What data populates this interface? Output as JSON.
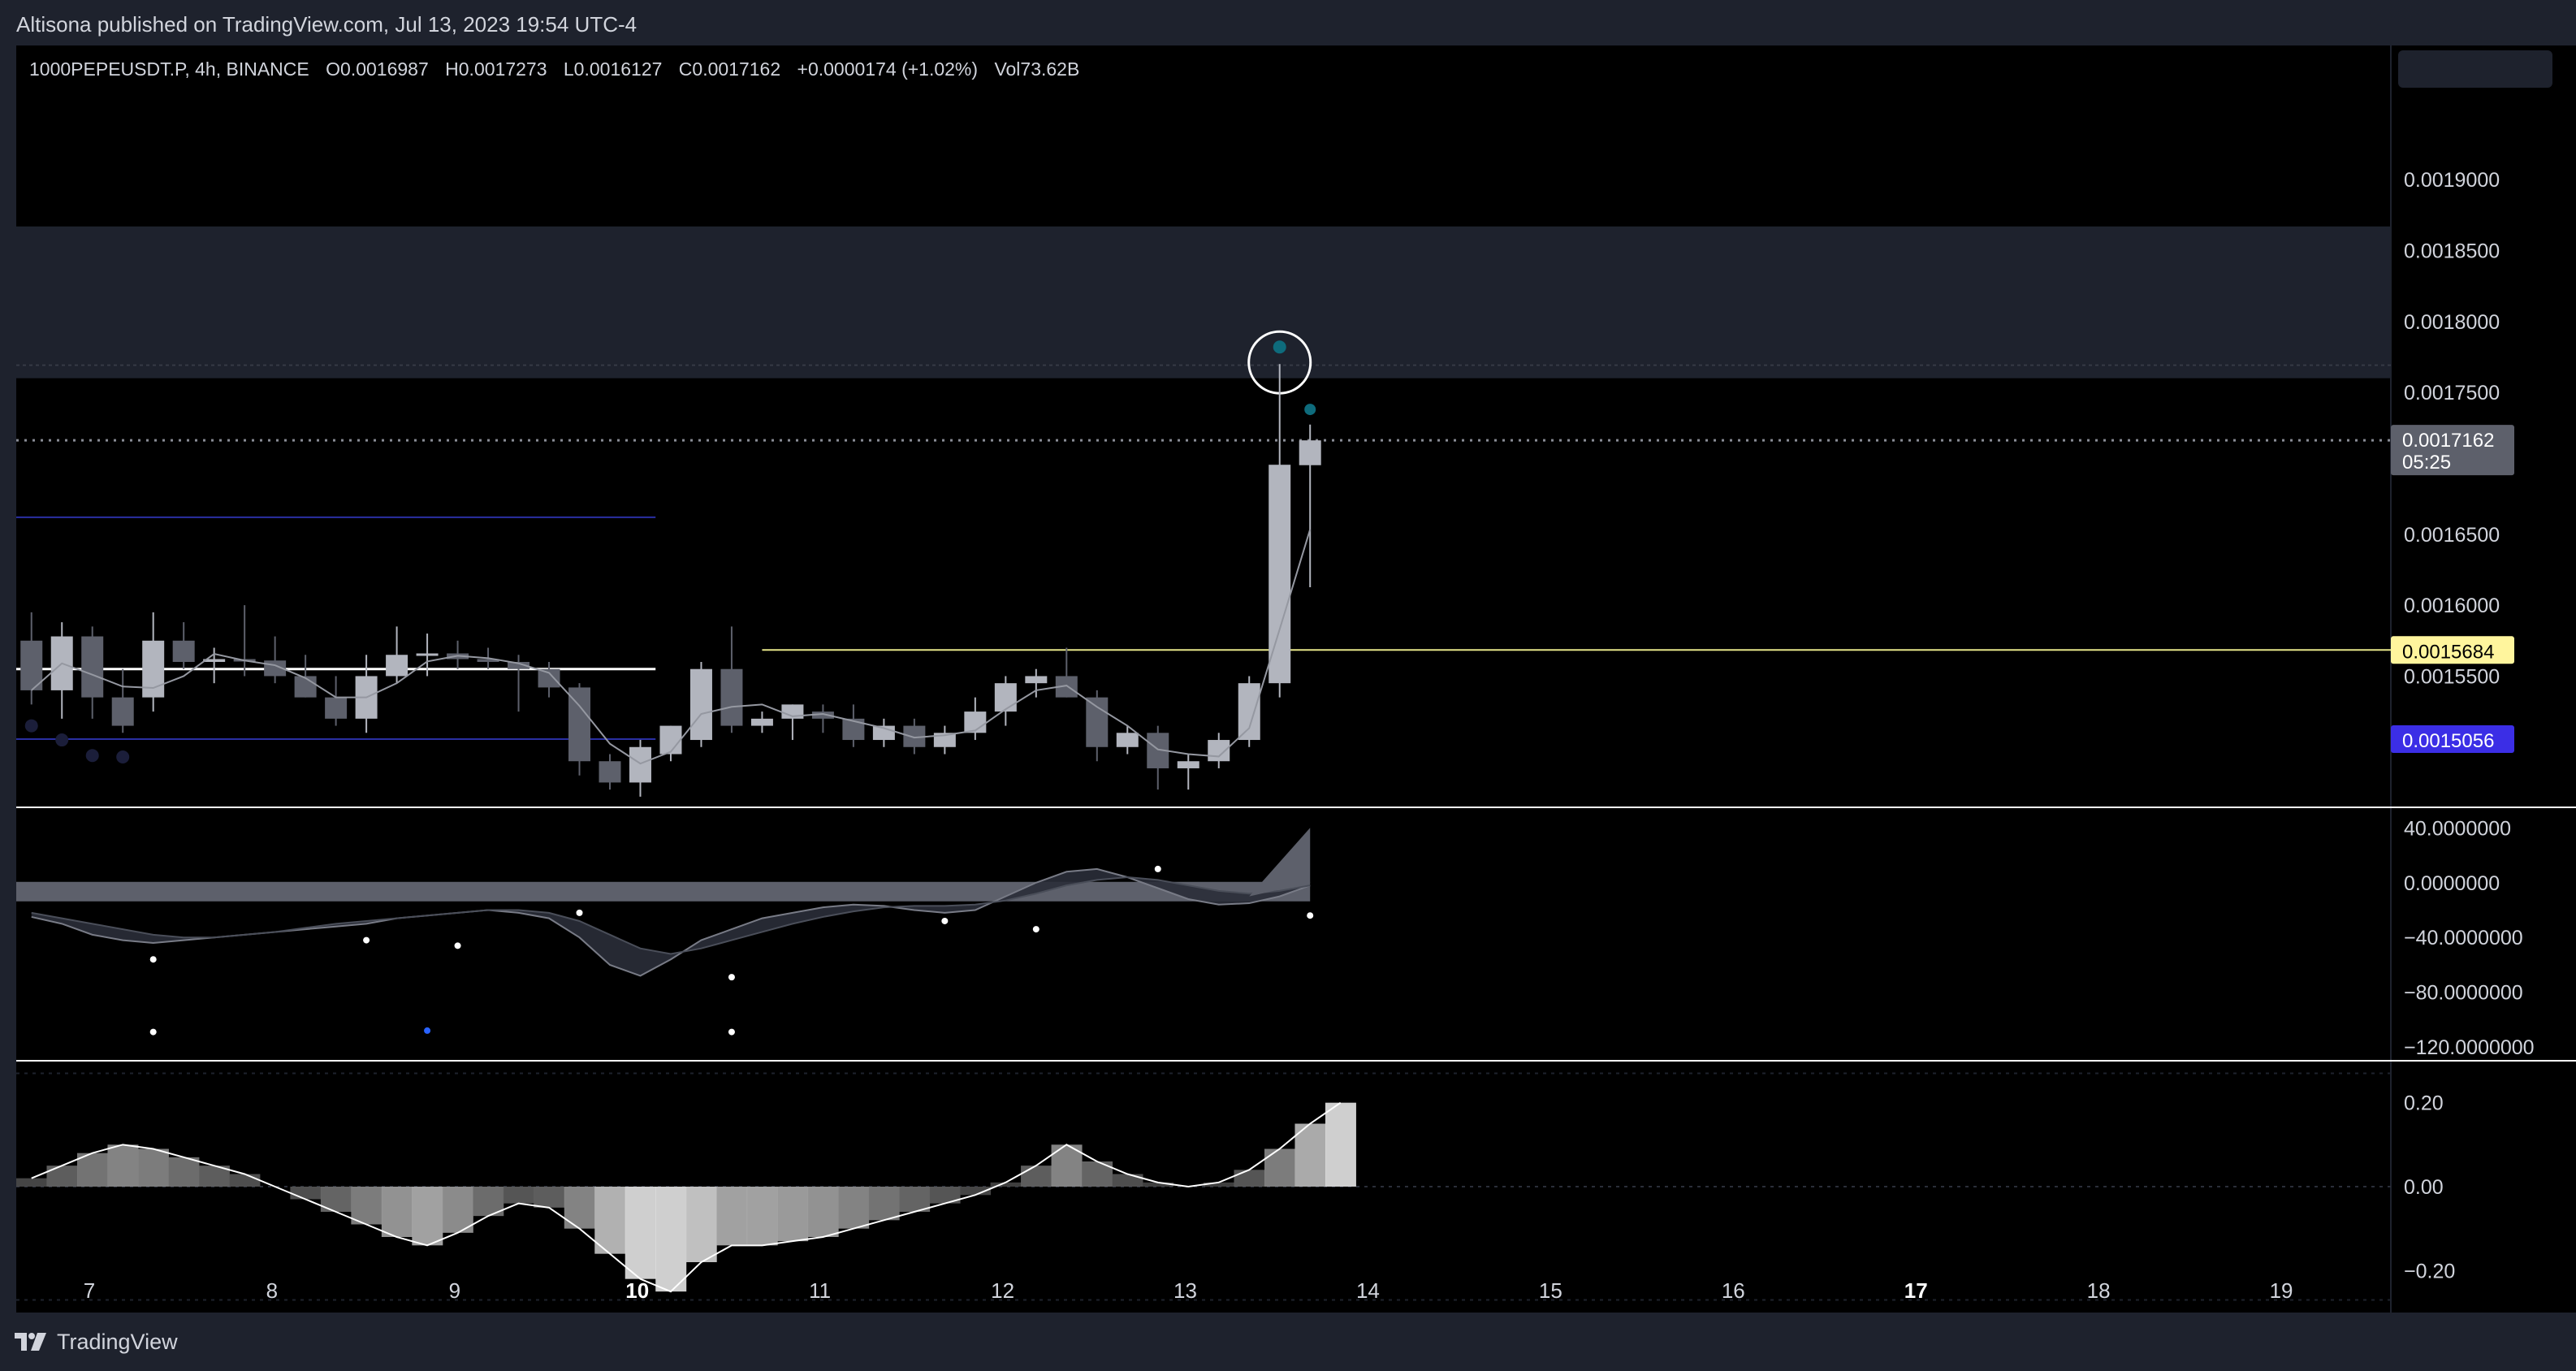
{
  "header": {
    "published": "Altisona published on TradingView.com, Jul 13, 2023 19:54 UTC-4"
  },
  "footer": {
    "brand": "TradingView",
    "logo_icon": "tradingview-logo-icon"
  },
  "colors": {
    "background": "#000000",
    "frame": "#1e222d",
    "zone": "#1e222d",
    "candle_up": "#b2b5be",
    "candle_down": "#5d606b",
    "support_line": "#ffffff",
    "level_line": "#e6e58a",
    "level_tag": "#fff59d",
    "blue_line": "#2a2fa3",
    "blue_tag": "#3b2ee6",
    "marker": "#0e6b7c"
  },
  "chart_data": {
    "type": "candlestick",
    "symbol": "1000PEPEUSDT.P",
    "interval": "4h",
    "exchange": "BINANCE",
    "legend": {
      "name": "1000PEPEUSDT.P, 4h, BINANCE",
      "open": "O0.0016987",
      "high": "H0.0017273",
      "low": "L0.0016127",
      "close": "C0.0017162",
      "change": "+0.0000174 (+1.02%)",
      "volume": "Vol73.62B"
    },
    "price_axis": {
      "ylim": [
        0.0014575,
        0.0019625
      ],
      "ticks": [
        "0.0019000",
        "0.0018500",
        "0.0018000",
        "0.0017500",
        "0.0016500",
        "0.0016000",
        "0.0015500"
      ]
    },
    "current_price": {
      "value": "0.0017162",
      "countdown": "05:25"
    },
    "level_tags": [
      {
        "price": 0.0015684,
        "label": "0.0015684"
      },
      {
        "price": 0.0015056,
        "label": "0.0015056"
      }
    ],
    "x_axis": {
      "day_labels": [
        "7",
        "8",
        "9",
        "10",
        "11",
        "12",
        "13",
        "14",
        "15",
        "16",
        "17",
        "18",
        "19"
      ],
      "bold_labels": [
        "10",
        "17"
      ],
      "candles_per_day": 6
    },
    "resistance_zone": {
      "low": 0.00176,
      "high": 0.001867
    },
    "candles": [
      {
        "o": 0.001575,
        "h": 0.001595,
        "l": 0.00153,
        "c": 0.00154
      },
      {
        "o": 0.00154,
        "h": 0.001588,
        "l": 0.00152,
        "c": 0.001578
      },
      {
        "o": 0.001578,
        "h": 0.001585,
        "l": 0.00152,
        "c": 0.001535
      },
      {
        "o": 0.001535,
        "h": 0.001555,
        "l": 0.00151,
        "c": 0.001515
      },
      {
        "o": 0.001535,
        "h": 0.001595,
        "l": 0.001525,
        "c": 0.001575
      },
      {
        "o": 0.001575,
        "h": 0.001588,
        "l": 0.001555,
        "c": 0.00156
      },
      {
        "o": 0.00156,
        "h": 0.00157,
        "l": 0.001545,
        "c": 0.001562
      },
      {
        "o": 0.001562,
        "h": 0.0016,
        "l": 0.00155,
        "c": 0.001561
      },
      {
        "o": 0.001561,
        "h": 0.001578,
        "l": 0.001545,
        "c": 0.00155
      },
      {
        "o": 0.00155,
        "h": 0.001565,
        "l": 0.001535,
        "c": 0.001535
      },
      {
        "o": 0.001535,
        "h": 0.00155,
        "l": 0.001515,
        "c": 0.00152
      },
      {
        "o": 0.00152,
        "h": 0.001565,
        "l": 0.00151,
        "c": 0.00155
      },
      {
        "o": 0.00155,
        "h": 0.001585,
        "l": 0.001545,
        "c": 0.001565
      },
      {
        "o": 0.001565,
        "h": 0.00158,
        "l": 0.00155,
        "c": 0.001566
      },
      {
        "o": 0.001566,
        "h": 0.001575,
        "l": 0.001555,
        "c": 0.001562
      },
      {
        "o": 0.001562,
        "h": 0.00157,
        "l": 0.001555,
        "c": 0.00156
      },
      {
        "o": 0.00156,
        "h": 0.001565,
        "l": 0.001525,
        "c": 0.001555
      },
      {
        "o": 0.001555,
        "h": 0.00156,
        "l": 0.001535,
        "c": 0.001542
      },
      {
        "o": 0.001542,
        "h": 0.001545,
        "l": 0.00148,
        "c": 0.00149
      },
      {
        "o": 0.00149,
        "h": 0.001495,
        "l": 0.00147,
        "c": 0.001475
      },
      {
        "o": 0.001475,
        "h": 0.001505,
        "l": 0.001465,
        "c": 0.0015
      },
      {
        "o": 0.001495,
        "h": 0.001515,
        "l": 0.00149,
        "c": 0.001515
      },
      {
        "o": 0.001505,
        "h": 0.00156,
        "l": 0.0015,
        "c": 0.001555
      },
      {
        "o": 0.001555,
        "h": 0.001585,
        "l": 0.00151,
        "c": 0.001515
      },
      {
        "o": 0.001515,
        "h": 0.001525,
        "l": 0.00151,
        "c": 0.00152
      },
      {
        "o": 0.00152,
        "h": 0.00153,
        "l": 0.001505,
        "c": 0.00153
      },
      {
        "o": 0.001525,
        "h": 0.00153,
        "l": 0.00151,
        "c": 0.00152
      },
      {
        "o": 0.00152,
        "h": 0.00153,
        "l": 0.0015,
        "c": 0.001505
      },
      {
        "o": 0.001505,
        "h": 0.00152,
        "l": 0.0015,
        "c": 0.001515
      },
      {
        "o": 0.001515,
        "h": 0.00152,
        "l": 0.001495,
        "c": 0.0015
      },
      {
        "o": 0.0015,
        "h": 0.001515,
        "l": 0.001495,
        "c": 0.00151
      },
      {
        "o": 0.00151,
        "h": 0.001535,
        "l": 0.001505,
        "c": 0.001525
      },
      {
        "o": 0.001525,
        "h": 0.00155,
        "l": 0.001515,
        "c": 0.001545
      },
      {
        "o": 0.001545,
        "h": 0.001555,
        "l": 0.001535,
        "c": 0.00155
      },
      {
        "o": 0.00155,
        "h": 0.00157,
        "l": 0.001535,
        "c": 0.001535
      },
      {
        "o": 0.001535,
        "h": 0.00154,
        "l": 0.00149,
        "c": 0.0015
      },
      {
        "o": 0.0015,
        "h": 0.001515,
        "l": 0.001495,
        "c": 0.00151
      },
      {
        "o": 0.00151,
        "h": 0.001515,
        "l": 0.00147,
        "c": 0.001485
      },
      {
        "o": 0.001485,
        "h": 0.001495,
        "l": 0.00147,
        "c": 0.00149
      },
      {
        "o": 0.00149,
        "h": 0.00151,
        "l": 0.001485,
        "c": 0.001505
      },
      {
        "o": 0.001505,
        "h": 0.00155,
        "l": 0.0015,
        "c": 0.001545
      },
      {
        "o": 0.001545,
        "h": 0.00177,
        "l": 0.001535,
        "c": 0.001699
      },
      {
        "o": 0.0016987,
        "h": 0.0017273,
        "l": 0.0016127,
        "c": 0.0017162
      }
    ],
    "indicator_1": {
      "name": "",
      "ylim": [
        -130,
        55
      ],
      "ticks": [
        "40.0000000",
        "0.0000000",
        "−40.0000000",
        "−80.0000000",
        "−120.0000000"
      ],
      "line_a": [
        -25,
        -30,
        -38,
        -42,
        -44,
        -42,
        -40,
        -38,
        -36,
        -34,
        -32,
        -30,
        -26,
        -24,
        -22,
        -20,
        -22,
        -26,
        -40,
        -60,
        -68,
        -56,
        -42,
        -34,
        -26,
        -22,
        -18,
        -16,
        -17,
        -20,
        -22,
        -20,
        -10,
        0,
        8,
        10,
        4,
        -4,
        -12,
        -16,
        -15,
        -10,
        -2
      ],
      "line_b": [
        -22,
        -26,
        -30,
        -34,
        -38,
        -40,
        -40,
        -38,
        -36,
        -33,
        -30,
        -28,
        -26,
        -24,
        -22,
        -20,
        -20,
        -22,
        -28,
        -38,
        -48,
        -52,
        -48,
        -42,
        -36,
        -30,
        -25,
        -21,
        -18,
        -17,
        -17,
        -16,
        -13,
        -8,
        -2,
        2,
        4,
        2,
        -2,
        -6,
        -8,
        -6,
        -2
      ],
      "band": [
        0,
        0
      ],
      "dots": [
        {
          "i": 4,
          "v": -56
        },
        {
          "i": 11,
          "v": -42
        },
        {
          "i": 14,
          "v": -46
        },
        {
          "i": 18,
          "v": -22
        },
        {
          "i": 23,
          "v": -69
        },
        {
          "i": 30,
          "v": -28
        },
        {
          "i": 33,
          "v": -34
        },
        {
          "i": 37,
          "v": 10
        },
        {
          "i": 42,
          "v": -24
        },
        {
          "i": 4,
          "v": -109
        },
        {
          "i": 13,
          "v": -108
        },
        {
          "i": 23,
          "v": -109
        }
      ],
      "last_points": [
        0,
        40
      ]
    },
    "indicator_2": {
      "name": "",
      "ylim": [
        -0.3,
        0.3
      ],
      "ticks": [
        "0.20",
        "0.00",
        "−0.20"
      ],
      "values": [
        0.02,
        0.05,
        0.08,
        0.1,
        0.09,
        0.07,
        0.05,
        0.03,
        0.0,
        -0.03,
        -0.06,
        -0.09,
        -0.12,
        -0.14,
        -0.11,
        -0.07,
        -0.04,
        -0.05,
        -0.1,
        -0.16,
        -0.22,
        -0.25,
        -0.18,
        -0.14,
        -0.14,
        -0.13,
        -0.12,
        -0.1,
        -0.08,
        -0.06,
        -0.04,
        -0.02,
        0.01,
        0.05,
        0.1,
        0.06,
        0.03,
        0.01,
        0.0,
        0.01,
        0.04,
        0.09,
        0.15,
        0.2
      ]
    }
  }
}
